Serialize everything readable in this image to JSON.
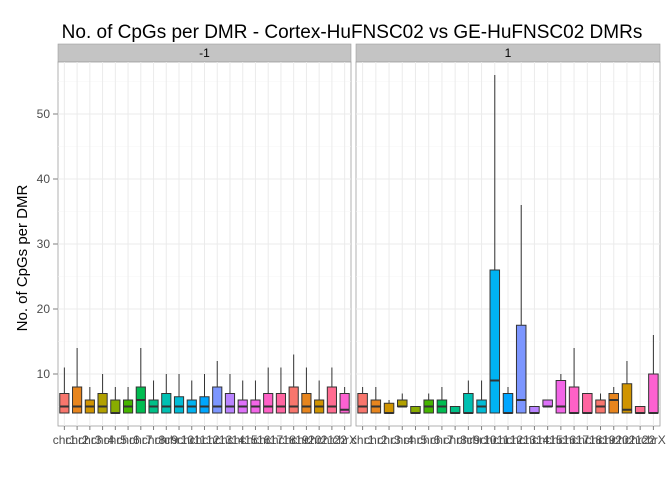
{
  "chart_data": {
    "type": "boxplot",
    "title": "No. of CpGs per DMR - Cortex-HuFNSC02 vs GE-HuFNSC02 DMRs",
    "ylabel": "No. of CpGs per DMR",
    "xlabel": "",
    "ylim": [
      2,
      58
    ],
    "yticks": [
      10,
      20,
      30,
      40,
      50
    ],
    "grid": true,
    "legend": "none",
    "categories": [
      "chr1",
      "chr2",
      "chr3",
      "chr4",
      "chr5",
      "chr6",
      "chr7",
      "chr8",
      "chr9",
      "chr10",
      "chr11",
      "chr12",
      "chr13",
      "chr14",
      "chr15",
      "chr16",
      "chr17",
      "chr18",
      "chr19",
      "chr20",
      "chr21",
      "chr22",
      "chrX"
    ],
    "tick_labels": [
      "chr1",
      "chr2",
      "chr3",
      "chr4",
      "chr5",
      "chr6",
      "chr7",
      "chr8",
      "chr9",
      "chr10",
      "chr11",
      "chr12",
      "chr13",
      "chr14",
      "chr15",
      "chr16",
      "chr17",
      "chr18",
      "chr19",
      "chr20",
      "chr21",
      "chr22",
      "chrX"
    ],
    "colors": [
      "#F8766D",
      "#E7851E",
      "#D09400",
      "#B2A100",
      "#89AC00",
      "#45B500",
      "#00BC51",
      "#00C087",
      "#00C0B2",
      "#00BCD6",
      "#00B3F2",
      "#00A6FF",
      "#7C96FF",
      "#B983FF",
      "#DE71F9",
      "#F265E7",
      "#FF61C7",
      "#FF65A0",
      "#F8766D",
      "#E7851E",
      "#D09400",
      "#FF6C91",
      "#FD61D1"
    ],
    "panels": [
      {
        "label": "-1",
        "boxes": [
          {
            "min": 4,
            "q1": 4,
            "median": 5,
            "q3": 7,
            "max": 11
          },
          {
            "min": 4,
            "q1": 4,
            "median": 5,
            "q3": 8,
            "max": 14
          },
          {
            "min": 4,
            "q1": 4,
            "median": 5,
            "q3": 6,
            "max": 8
          },
          {
            "min": 4,
            "q1": 4,
            "median": 5,
            "q3": 7,
            "max": 10
          },
          {
            "min": 4,
            "q1": 4,
            "median": 4,
            "q3": 6,
            "max": 8
          },
          {
            "min": 4,
            "q1": 4,
            "median": 5,
            "q3": 6,
            "max": 8
          },
          {
            "min": 4,
            "q1": 4,
            "median": 6,
            "q3": 8,
            "max": 14
          },
          {
            "min": 4,
            "q1": 4,
            "median": 5,
            "q3": 6,
            "max": 9
          },
          {
            "min": 4,
            "q1": 4,
            "median": 5,
            "q3": 7,
            "max": 10
          },
          {
            "min": 4,
            "q1": 4,
            "median": 5,
            "q3": 6.5,
            "max": 10
          },
          {
            "min": 4,
            "q1": 4,
            "median": 5,
            "q3": 6,
            "max": 9
          },
          {
            "min": 4,
            "q1": 4,
            "median": 5,
            "q3": 6.5,
            "max": 10
          },
          {
            "min": 4,
            "q1": 4,
            "median": 5,
            "q3": 8,
            "max": 12
          },
          {
            "min": 4,
            "q1": 4,
            "median": 5,
            "q3": 7,
            "max": 10
          },
          {
            "min": 4,
            "q1": 4,
            "median": 5,
            "q3": 6,
            "max": 9
          },
          {
            "min": 4,
            "q1": 4,
            "median": 5,
            "q3": 6,
            "max": 9
          },
          {
            "min": 4,
            "q1": 4,
            "median": 5,
            "q3": 7,
            "max": 11
          },
          {
            "min": 4,
            "q1": 4,
            "median": 5,
            "q3": 7,
            "max": 11
          },
          {
            "min": 4,
            "q1": 4,
            "median": 5,
            "q3": 8,
            "max": 13
          },
          {
            "min": 4,
            "q1": 4,
            "median": 5,
            "q3": 7,
            "max": 11
          },
          {
            "min": 4,
            "q1": 4,
            "median": 5,
            "q3": 6,
            "max": 9
          },
          {
            "min": 4,
            "q1": 4,
            "median": 5,
            "q3": 8,
            "max": 11
          },
          {
            "min": 4,
            "q1": 4,
            "median": 4.5,
            "q3": 7,
            "max": 8
          }
        ]
      },
      {
        "label": "1",
        "boxes": [
          {
            "min": 4,
            "q1": 4,
            "median": 5,
            "q3": 7,
            "max": 8
          },
          {
            "min": 4,
            "q1": 4,
            "median": 5,
            "q3": 6,
            "max": 8
          },
          {
            "min": 4,
            "q1": 4,
            "median": 4,
            "q3": 5.5,
            "max": 6
          },
          {
            "min": 5,
            "q1": 5,
            "median": 5,
            "q3": 6,
            "max": 7
          },
          {
            "min": 4,
            "q1": 4,
            "median": 4,
            "q3": 5,
            "max": 5
          },
          {
            "min": 4,
            "q1": 4,
            "median": 5,
            "q3": 6,
            "max": 7
          },
          {
            "min": 4,
            "q1": 4,
            "median": 5,
            "q3": 6,
            "max": 8
          },
          {
            "min": 4,
            "q1": 4,
            "median": 4,
            "q3": 5,
            "max": 5
          },
          {
            "min": 4,
            "q1": 4,
            "median": 4,
            "q3": 7,
            "max": 9
          },
          {
            "min": 4,
            "q1": 4,
            "median": 5,
            "q3": 6,
            "max": 9
          },
          {
            "min": 4,
            "q1": 4,
            "median": 9,
            "q3": 26,
            "max": 56
          },
          {
            "min": 4,
            "q1": 4,
            "median": 4,
            "q3": 7,
            "max": 8
          },
          {
            "min": 4,
            "q1": 4,
            "median": 6,
            "q3": 17.5,
            "max": 36
          },
          {
            "min": 4,
            "q1": 4,
            "median": 4,
            "q3": 5,
            "max": 5
          },
          {
            "min": 5,
            "q1": 5,
            "median": 5,
            "q3": 6,
            "max": 6
          },
          {
            "min": 4,
            "q1": 4,
            "median": 5,
            "q3": 9,
            "max": 10
          },
          {
            "min": 4,
            "q1": 4,
            "median": 4,
            "q3": 8,
            "max": 14
          },
          {
            "min": 4,
            "q1": 4,
            "median": 4,
            "q3": 7,
            "max": 7
          },
          {
            "min": 4,
            "q1": 4,
            "median": 5,
            "q3": 6,
            "max": 7
          },
          {
            "min": 4,
            "q1": 4,
            "median": 6,
            "q3": 7,
            "max": 8
          },
          {
            "min": 4,
            "q1": 4,
            "median": 4.5,
            "q3": 8.5,
            "max": 12
          },
          {
            "min": 4,
            "q1": 4,
            "median": 4,
            "q3": 5,
            "max": 5
          },
          {
            "min": 4,
            "q1": 4,
            "median": 4,
            "q3": 10,
            "max": 16
          }
        ]
      }
    ]
  }
}
